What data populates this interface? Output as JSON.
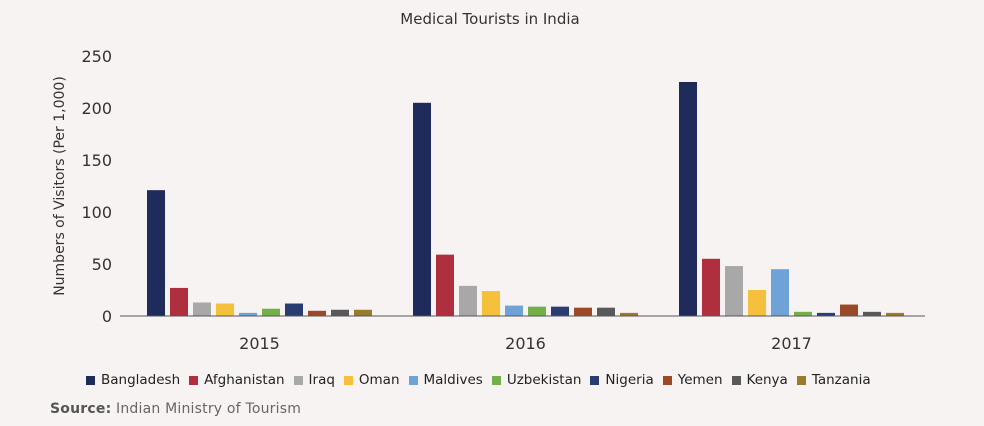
{
  "chart_data": {
    "type": "bar",
    "title": "Medical Tourists in India",
    "xlabel": "",
    "ylabel": "Numbers of Visitors (Per 1,000)",
    "ylim": [
      0,
      250
    ],
    "yticks": [
      0,
      50,
      100,
      150,
      200,
      250
    ],
    "categories": [
      "2015",
      "2016",
      "2017"
    ],
    "grid": false,
    "legend_position": "bottom",
    "series": [
      {
        "name": "Bangladesh",
        "color": "#1f2b5a",
        "values": [
          121,
          205,
          225
        ]
      },
      {
        "name": "Afghanistan",
        "color": "#b02f3f",
        "values": [
          27,
          59,
          55
        ]
      },
      {
        "name": "Iraq",
        "color": "#a8a8a8",
        "values": [
          13,
          29,
          48
        ]
      },
      {
        "name": "Oman",
        "color": "#f5c03c",
        "values": [
          12,
          24,
          25
        ]
      },
      {
        "name": "Maldives",
        "color": "#6fa3d8",
        "values": [
          3,
          10,
          45
        ]
      },
      {
        "name": "Uzbekistan",
        "color": "#73b04a",
        "values": [
          7,
          9,
          4
        ]
      },
      {
        "name": "Nigeria",
        "color": "#2a3d70",
        "values": [
          12,
          9,
          3
        ]
      },
      {
        "name": "Yemen",
        "color": "#9b4a28",
        "values": [
          5,
          8,
          11
        ]
      },
      {
        "name": "Kenya",
        "color": "#595959",
        "values": [
          6,
          8,
          4
        ]
      },
      {
        "name": "Tanzania",
        "color": "#9a7a2e",
        "values": [
          6,
          3,
          3
        ]
      }
    ]
  },
  "source": {
    "label": "Source:",
    "text": "Indian Ministry of Tourism"
  }
}
